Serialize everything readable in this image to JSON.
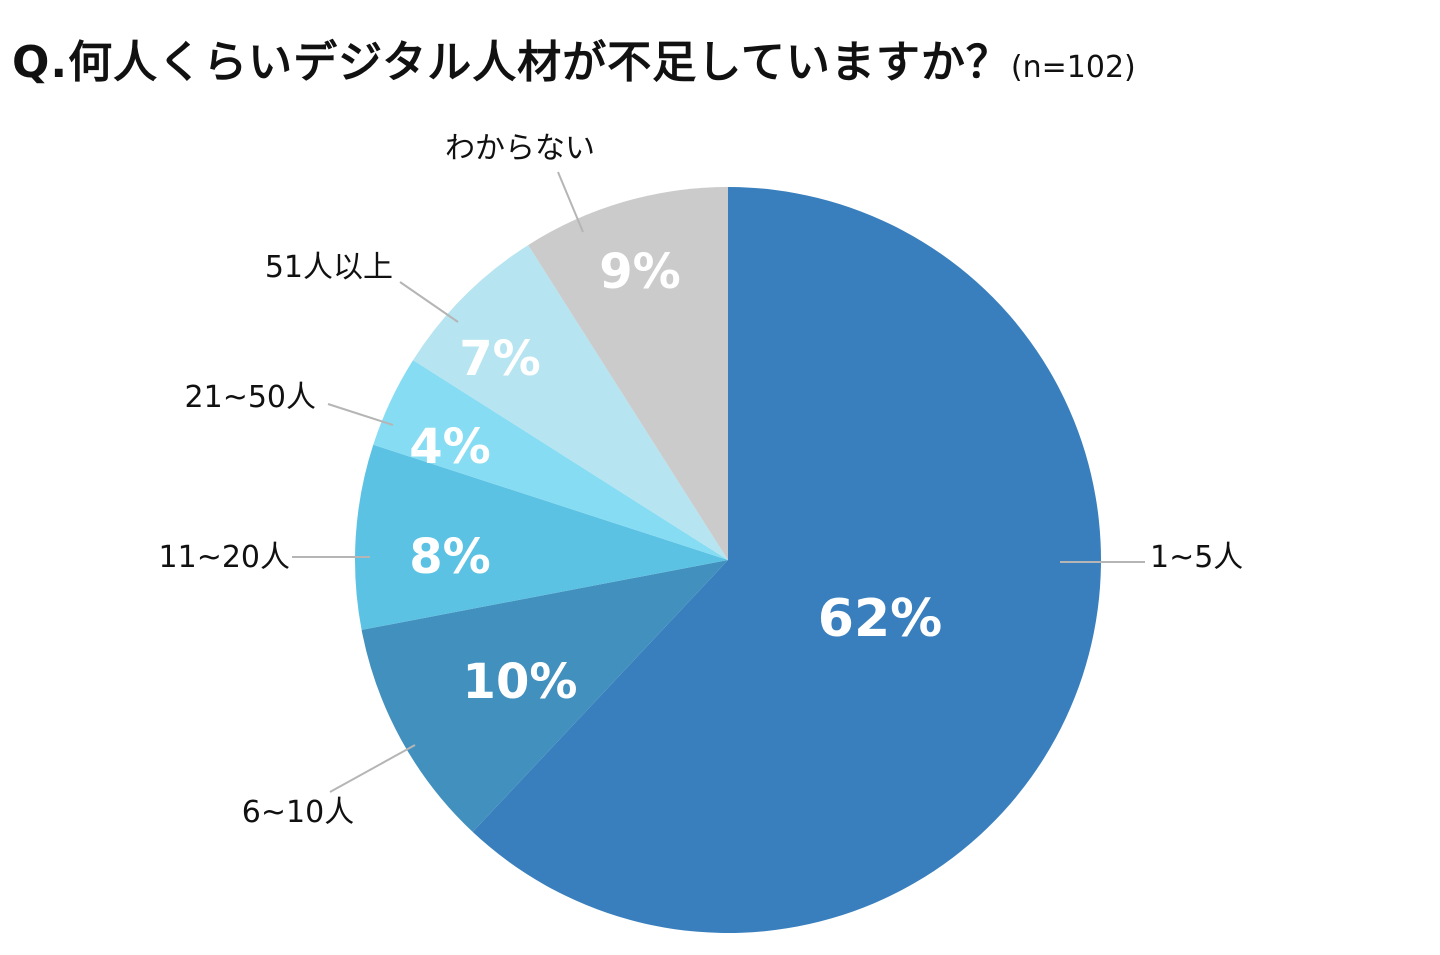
{
  "chart_data": {
    "type": "pie",
    "title": "Q.何人くらいデジタル人材が不足していますか？",
    "sample_size": "(n=102)",
    "slices": [
      {
        "label": "1~5人",
        "value": 62,
        "value_label": "62%",
        "color": "#3a7fbd"
      },
      {
        "label": "6~10人",
        "value": 10,
        "value_label": "10%",
        "color": "#4290be"
      },
      {
        "label": "11~20人",
        "value": 8,
        "value_label": "8%",
        "color": "#5bc2e3"
      },
      {
        "label": "21~50人",
        "value": 4,
        "value_label": "4%",
        "color": "#86dcf3"
      },
      {
        "label": "51人以上",
        "value": 7,
        "value_label": "7%",
        "color": "#b6e4f0"
      },
      {
        "label": "わからない",
        "value": 9,
        "value_label": "9%",
        "color": "#cbcbcb"
      }
    ],
    "start_angle": "top",
    "direction": "clockwise",
    "legend": "none"
  }
}
